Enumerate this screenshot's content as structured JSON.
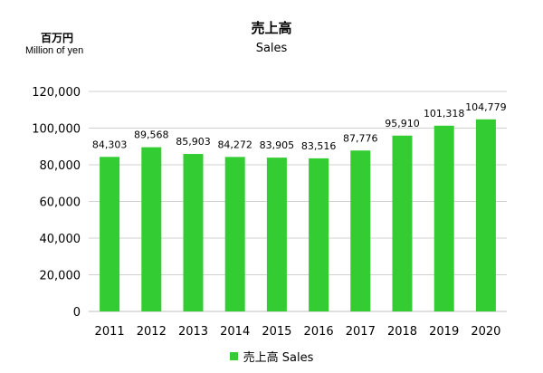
{
  "title": "売上高",
  "subtitle": "Sales",
  "unit_label_jp": "百万円",
  "unit_label_en": "Million of yen",
  "colors": {
    "bar": "#33cc33",
    "grid": "#d0d0d0",
    "axis": "#bfbfbf"
  },
  "chart_data": {
    "type": "bar",
    "title": "売上高",
    "subtitle": "Sales",
    "ylabel": "百万円 Million of yen",
    "categories": [
      "2011",
      "2012",
      "2013",
      "2014",
      "2015",
      "2016",
      "2017",
      "2018",
      "2019",
      "2020"
    ],
    "series": [
      {
        "name": "売上高 Sales",
        "values": [
          84303,
          89568,
          85903,
          84272,
          83905,
          83516,
          87776,
          95910,
          101318,
          104779
        ],
        "labels": [
          "84,303",
          "89,568",
          "85,903",
          "84,272",
          "83,905",
          "83,516",
          "87,776",
          "95,910",
          "101,318",
          "104,779"
        ]
      }
    ],
    "ylim": [
      0,
      120000
    ],
    "yticks": [
      0,
      20000,
      40000,
      60000,
      80000,
      100000,
      120000
    ],
    "ytick_labels": [
      "0",
      "20,000",
      "40,000",
      "60,000",
      "80,000",
      "100,000",
      "120,000"
    ],
    "grid": true,
    "legend_position": "bottom"
  }
}
